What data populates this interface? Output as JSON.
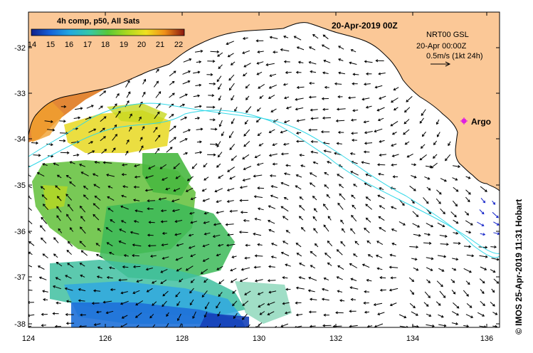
{
  "map": {
    "title": "20-Apr-2019 00Z",
    "legend": {
      "title": "4h comp, p50, All Sats",
      "ticks": [
        "14",
        "15",
        "16",
        "17",
        "18",
        "19",
        "20",
        "21",
        "22"
      ],
      "colors": [
        "#10208a",
        "#1560d8",
        "#22a8e0",
        "#35c8a8",
        "#58c838",
        "#a8d820",
        "#f0e020",
        "#f09018",
        "#d84818",
        "#8a1810"
      ]
    },
    "info": {
      "line1": "NRT00 GSL",
      "line2": "20-Apr 00:00Z",
      "line3": "0.5m/s (1kt 24h)"
    },
    "argo_label": "Argo",
    "x_ticks": [
      "124",
      "126",
      "128",
      "130",
      "132",
      "134",
      "136"
    ],
    "y_ticks": [
      "-32",
      "-33",
      "-34",
      "-35",
      "-36",
      "-37",
      "-38"
    ],
    "credit": "© IMOS 25-Apr-2019 11:31 Hobart",
    "colors": {
      "land": "#fbc897",
      "ocean": "#ffffff",
      "contour": "#30d8e8",
      "arrow": "#000000",
      "arrow_blue": "#1020c8",
      "argo": "#e020e0"
    }
  }
}
